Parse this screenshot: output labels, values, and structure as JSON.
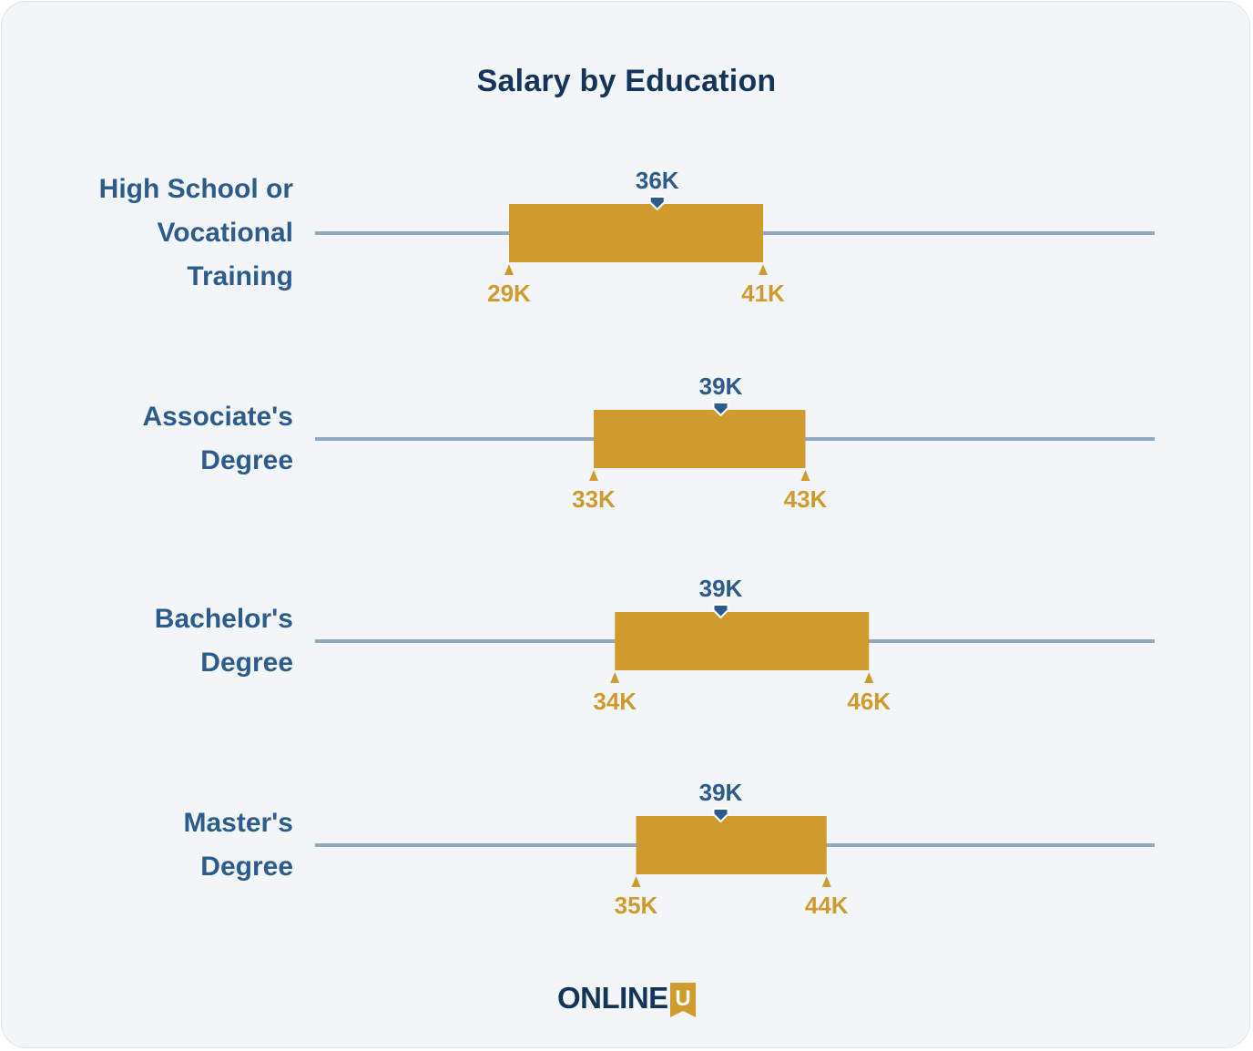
{
  "title": "Salary by Education",
  "logo": {
    "text": "ONLINE",
    "badge_letter": "U"
  },
  "colors": {
    "range": "#d09b2e",
    "median": "#2d5c8c",
    "axis": "#90a8c3",
    "label": "#2d5c8c",
    "title": "#16335a"
  },
  "chart_data": {
    "type": "range",
    "title": "Salary by Education",
    "unit_suffix": "K",
    "xlim": [
      14,
      66
    ],
    "grid": false,
    "categories": [
      "High School or Vocational Training",
      "Associate's Degree",
      "Bachelor's Degree",
      "Master's Degree"
    ],
    "rows": [
      {
        "label_lines": [
          "High School or",
          "Vocational",
          "Training"
        ],
        "low": 29,
        "median": 36,
        "high": 41,
        "low_label": "29K",
        "median_label": "36K",
        "high_label": "41K"
      },
      {
        "label_lines": [
          "Associate's",
          "Degree"
        ],
        "low": 33,
        "median": 39,
        "high": 43,
        "low_label": "33K",
        "median_label": "39K",
        "high_label": "43K"
      },
      {
        "label_lines": [
          "Bachelor's",
          "Degree"
        ],
        "low": 34,
        "median": 39,
        "high": 46,
        "low_label": "34K",
        "median_label": "39K",
        "high_label": "46K"
      },
      {
        "label_lines": [
          "Master's",
          "Degree"
        ],
        "low": 35,
        "median": 39,
        "high": 44,
        "low_label": "35K",
        "median_label": "39K",
        "high_label": "44K"
      }
    ]
  }
}
